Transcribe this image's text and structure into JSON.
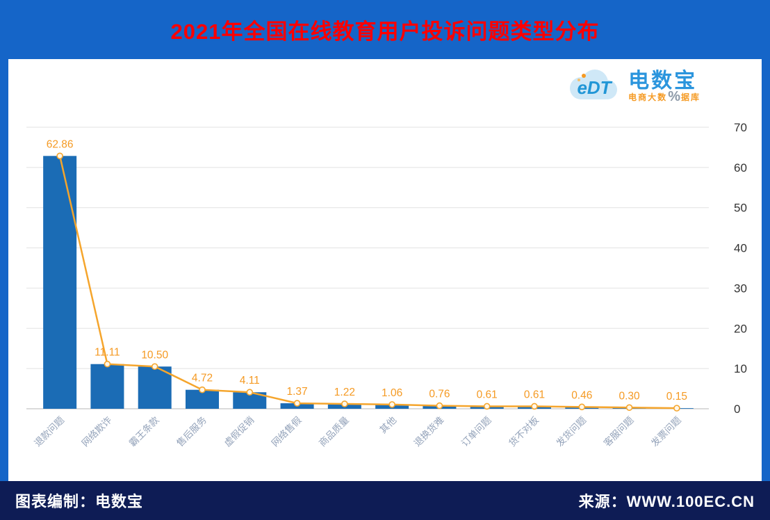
{
  "header": {
    "title": "2021年全国在线教育用户投诉问题类型分布"
  },
  "logo": {
    "initials": "eDT",
    "brand": "电数宝",
    "subtitle_left": "电商大数",
    "percent": "%",
    "subtitle_right": "据库"
  },
  "footer": {
    "credit": "图表编制：电数宝",
    "source": "来源：WWW.100EC.CN"
  },
  "colors": {
    "header_bg": "#1565c8",
    "title_red": "#ff0000",
    "footer_bg": "#0e1c55",
    "bar": "#1b6cb5",
    "line": "#f5a52c",
    "value_label": "#f59a23",
    "grid": "#e2e2e2",
    "axis": "#b7b7b7",
    "ytick": "#333333",
    "xtick": "#94a3ba"
  },
  "chart_data": {
    "type": "bar",
    "combo": [
      "bar",
      "line"
    ],
    "title": "2021年全国在线教育用户投诉问题类型分布",
    "categories": [
      "退款问题",
      "网络欺诈",
      "霸王条款",
      "售后服务",
      "虚假促销",
      "网络售假",
      "商品质量",
      "其他",
      "退换货难",
      "订单问题",
      "货不对板",
      "发货问题",
      "客服问题",
      "发票问题"
    ],
    "values": [
      62.86,
      11.11,
      10.5,
      4.72,
      4.11,
      1.37,
      1.22,
      1.06,
      0.76,
      0.61,
      0.61,
      0.46,
      0.3,
      0.15
    ],
    "value_labels": [
      "62.86",
      "11.11",
      "10.50",
      "4.72",
      "4.11",
      "1.37",
      "1.22",
      "1.06",
      "0.76",
      "0.61",
      "0.61",
      "0.46",
      "0.30",
      "0.15"
    ],
    "xlabel": "",
    "ylabel": "",
    "ylim": [
      0,
      70
    ],
    "yticks": [
      0,
      10,
      20,
      30,
      40,
      50,
      60,
      70
    ],
    "yaxis_position": "right",
    "grid": true,
    "legend": "none"
  }
}
